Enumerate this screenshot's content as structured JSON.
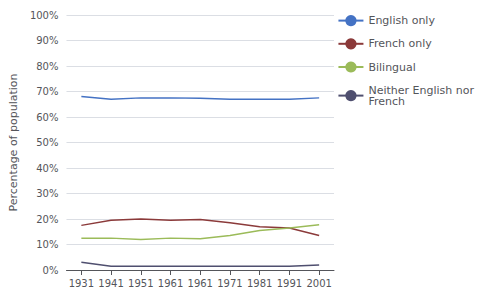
{
  "chart_data": {
    "type": "line",
    "categories": [
      "1931",
      "1941",
      "1951",
      "1961",
      "1961",
      "1971",
      "1981",
      "1991",
      "2001"
    ],
    "series": [
      {
        "name": "English only",
        "color": "#4472C4",
        "values": [
          68.0,
          67.0,
          67.5,
          67.5,
          67.4,
          67.0,
          67.0,
          67.0,
          67.5
        ]
      },
      {
        "name": "French only",
        "color": "#8B3A3A",
        "values": [
          17.5,
          19.5,
          20.0,
          19.5,
          19.8,
          18.5,
          17.0,
          16.5,
          13.5
        ]
      },
      {
        "name": "Bilingual",
        "color": "#9BBB59",
        "values": [
          12.5,
          12.5,
          12.0,
          12.5,
          12.3,
          13.5,
          15.5,
          16.5,
          17.7
        ]
      },
      {
        "name": "Neither English nor\nFrench",
        "color": "#4F4F6F",
        "values": [
          3.0,
          1.5,
          1.5,
          1.5,
          1.5,
          1.5,
          1.5,
          1.5,
          2.0
        ]
      }
    ],
    "ylabel": "Percentage of population",
    "ylim": [
      0,
      100
    ],
    "yticks": [
      {
        "value": 0,
        "label": "0%"
      },
      {
        "value": 10,
        "label": "10%"
      },
      {
        "value": 20,
        "label": "20%"
      },
      {
        "value": 30,
        "label": "30%"
      },
      {
        "value": 40,
        "label": "40%"
      },
      {
        "value": 50,
        "label": "50%"
      },
      {
        "value": 60,
        "label": "60%"
      },
      {
        "value": 70,
        "label": "70%"
      },
      {
        "value": 80,
        "label": "80%"
      },
      {
        "value": 90,
        "label": "90%"
      },
      {
        "value": 100,
        "label": "100%"
      }
    ],
    "grid": true,
    "legend": "upper right"
  }
}
